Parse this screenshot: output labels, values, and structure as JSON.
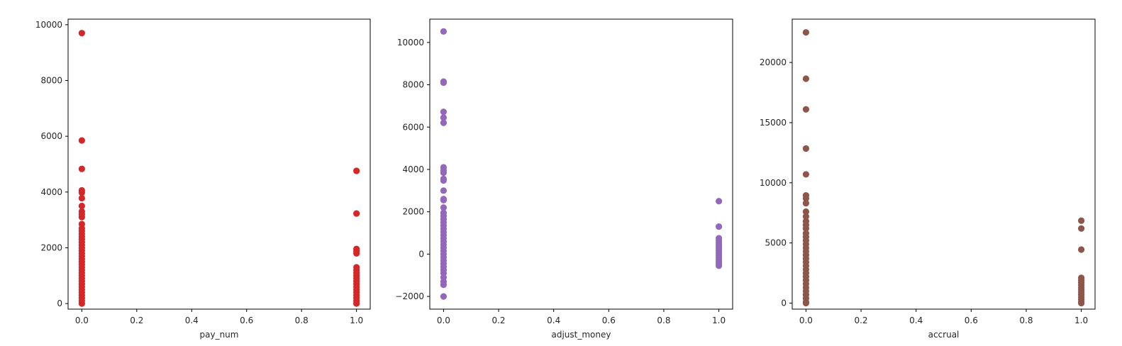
{
  "chart_data": [
    {
      "type": "scatter",
      "xlabel": "pay_num",
      "color": "#d62728",
      "xlim": [
        -0.05,
        1.05
      ],
      "ylim": [
        -200,
        10200
      ],
      "xticks": [
        0.0,
        0.2,
        0.4,
        0.6,
        0.8,
        1.0
      ],
      "xtick_labels": [
        "0.0",
        "0.2",
        "0.4",
        "0.6",
        "0.8",
        "1.0"
      ],
      "yticks": [
        0,
        2000,
        4000,
        6000,
        8000,
        10000
      ],
      "ytick_labels": [
        "0",
        "2000",
        "4000",
        "6000",
        "8000",
        "10000"
      ],
      "grid": false,
      "points": [
        {
          "x": 0,
          "y": 9700
        },
        {
          "x": 0,
          "y": 5850
        },
        {
          "x": 0,
          "y": 4830
        },
        {
          "x": 0,
          "y": 4060
        },
        {
          "x": 0,
          "y": 3980
        },
        {
          "x": 0,
          "y": 3780
        },
        {
          "x": 0,
          "y": 3500
        },
        {
          "x": 0,
          "y": 3300
        },
        {
          "x": 0,
          "y": 3200
        },
        {
          "x": 0,
          "y": 3100
        },
        {
          "x": 0,
          "y": 2850
        },
        {
          "x": 0,
          "y": 2700
        },
        {
          "x": 0,
          "y": 2600
        },
        {
          "x": 0,
          "y": 2500
        },
        {
          "x": 0,
          "y": 2400
        },
        {
          "x": 0,
          "y": 2300
        },
        {
          "x": 0,
          "y": 2200
        },
        {
          "x": 0,
          "y": 2100
        },
        {
          "x": 0,
          "y": 2000
        },
        {
          "x": 0,
          "y": 1900
        },
        {
          "x": 0,
          "y": 1800
        },
        {
          "x": 0,
          "y": 1700
        },
        {
          "x": 0,
          "y": 1600
        },
        {
          "x": 0,
          "y": 1500
        },
        {
          "x": 0,
          "y": 1400
        },
        {
          "x": 0,
          "y": 1300
        },
        {
          "x": 0,
          "y": 1200
        },
        {
          "x": 0,
          "y": 1100
        },
        {
          "x": 0,
          "y": 1000
        },
        {
          "x": 0,
          "y": 900
        },
        {
          "x": 0,
          "y": 800
        },
        {
          "x": 0,
          "y": 700
        },
        {
          "x": 0,
          "y": 600
        },
        {
          "x": 0,
          "y": 500
        },
        {
          "x": 0,
          "y": 400
        },
        {
          "x": 0,
          "y": 300
        },
        {
          "x": 0,
          "y": 200
        },
        {
          "x": 0,
          "y": 100
        },
        {
          "x": 0,
          "y": 0
        },
        {
          "x": 1,
          "y": 4760
        },
        {
          "x": 1,
          "y": 3230
        },
        {
          "x": 1,
          "y": 1960
        },
        {
          "x": 1,
          "y": 1880
        },
        {
          "x": 1,
          "y": 1800
        },
        {
          "x": 1,
          "y": 1300
        },
        {
          "x": 1,
          "y": 1200
        },
        {
          "x": 1,
          "y": 1100
        },
        {
          "x": 1,
          "y": 1000
        },
        {
          "x": 1,
          "y": 900
        },
        {
          "x": 1,
          "y": 800
        },
        {
          "x": 1,
          "y": 700
        },
        {
          "x": 1,
          "y": 600
        },
        {
          "x": 1,
          "y": 500
        },
        {
          "x": 1,
          "y": 400
        },
        {
          "x": 1,
          "y": 300
        },
        {
          "x": 1,
          "y": 200
        },
        {
          "x": 1,
          "y": 100
        },
        {
          "x": 1,
          "y": 0
        }
      ]
    },
    {
      "type": "scatter",
      "xlabel": "adjust_money",
      "color": "#9467bd",
      "xlim": [
        -0.05,
        1.05
      ],
      "ylim": [
        -2600,
        11100
      ],
      "xticks": [
        0.0,
        0.2,
        0.4,
        0.6,
        0.8,
        1.0
      ],
      "xtick_labels": [
        "0.0",
        "0.2",
        "0.4",
        "0.6",
        "0.8",
        "1.0"
      ],
      "yticks": [
        -2000,
        0,
        2000,
        4000,
        6000,
        8000,
        10000
      ],
      "ytick_labels": [
        "−2000",
        "0",
        "2000",
        "4000",
        "6000",
        "8000",
        "10000"
      ],
      "grid": false,
      "points": [
        {
          "x": 0,
          "y": 10520
        },
        {
          "x": 0,
          "y": 8150
        },
        {
          "x": 0,
          "y": 8100
        },
        {
          "x": 0,
          "y": 6720
        },
        {
          "x": 0,
          "y": 6450
        },
        {
          "x": 0,
          "y": 6200
        },
        {
          "x": 0,
          "y": 4100
        },
        {
          "x": 0,
          "y": 3950
        },
        {
          "x": 0,
          "y": 3850
        },
        {
          "x": 0,
          "y": 3550
        },
        {
          "x": 0,
          "y": 3480
        },
        {
          "x": 0,
          "y": 3000
        },
        {
          "x": 0,
          "y": 2600
        },
        {
          "x": 0,
          "y": 2550
        },
        {
          "x": 0,
          "y": 2200
        },
        {
          "x": 0,
          "y": 1950
        },
        {
          "x": 0,
          "y": 1800
        },
        {
          "x": 0,
          "y": 1650
        },
        {
          "x": 0,
          "y": 1500
        },
        {
          "x": 0,
          "y": 1350
        },
        {
          "x": 0,
          "y": 1200
        },
        {
          "x": 0,
          "y": 1050
        },
        {
          "x": 0,
          "y": 900
        },
        {
          "x": 0,
          "y": 750
        },
        {
          "x": 0,
          "y": 600
        },
        {
          "x": 0,
          "y": 450
        },
        {
          "x": 0,
          "y": 300
        },
        {
          "x": 0,
          "y": 150
        },
        {
          "x": 0,
          "y": 0
        },
        {
          "x": 0,
          "y": -150
        },
        {
          "x": 0,
          "y": -300
        },
        {
          "x": 0,
          "y": -450
        },
        {
          "x": 0,
          "y": -600
        },
        {
          "x": 0,
          "y": -750
        },
        {
          "x": 0,
          "y": -900
        },
        {
          "x": 0,
          "y": -1100
        },
        {
          "x": 0,
          "y": -1300
        },
        {
          "x": 0,
          "y": -1450
        },
        {
          "x": 0,
          "y": -2000
        },
        {
          "x": 1,
          "y": 2500
        },
        {
          "x": 1,
          "y": 1300
        },
        {
          "x": 1,
          "y": 750
        },
        {
          "x": 1,
          "y": 650
        },
        {
          "x": 1,
          "y": 550
        },
        {
          "x": 1,
          "y": 450
        },
        {
          "x": 1,
          "y": 350
        },
        {
          "x": 1,
          "y": 250
        },
        {
          "x": 1,
          "y": 150
        },
        {
          "x": 1,
          "y": 50
        },
        {
          "x": 1,
          "y": -50
        },
        {
          "x": 1,
          "y": -150
        },
        {
          "x": 1,
          "y": -250
        },
        {
          "x": 1,
          "y": -350
        },
        {
          "x": 1,
          "y": -450
        },
        {
          "x": 1,
          "y": -550
        }
      ]
    },
    {
      "type": "scatter",
      "xlabel": "accrual",
      "color": "#8c564b",
      "xlim": [
        -0.05,
        1.05
      ],
      "ylim": [
        -500,
        23600
      ],
      "xticks": [
        0.0,
        0.2,
        0.4,
        0.6,
        0.8,
        1.0
      ],
      "xtick_labels": [
        "0.0",
        "0.2",
        "0.4",
        "0.6",
        "0.8",
        "1.0"
      ],
      "yticks": [
        0,
        5000,
        10000,
        15000,
        20000
      ],
      "ytick_labels": [
        "0",
        "5000",
        "10000",
        "15000",
        "20000"
      ],
      "grid": false,
      "points": [
        {
          "x": 0,
          "y": 22500
        },
        {
          "x": 0,
          "y": 18650
        },
        {
          "x": 0,
          "y": 16100
        },
        {
          "x": 0,
          "y": 12850
        },
        {
          "x": 0,
          "y": 10700
        },
        {
          "x": 0,
          "y": 8950
        },
        {
          "x": 0,
          "y": 8700
        },
        {
          "x": 0,
          "y": 8300
        },
        {
          "x": 0,
          "y": 7600
        },
        {
          "x": 0,
          "y": 7200
        },
        {
          "x": 0,
          "y": 6800
        },
        {
          "x": 0,
          "y": 6500
        },
        {
          "x": 0,
          "y": 6200
        },
        {
          "x": 0,
          "y": 5800
        },
        {
          "x": 0,
          "y": 5500
        },
        {
          "x": 0,
          "y": 5200
        },
        {
          "x": 0,
          "y": 4900
        },
        {
          "x": 0,
          "y": 4600
        },
        {
          "x": 0,
          "y": 4300
        },
        {
          "x": 0,
          "y": 4000
        },
        {
          "x": 0,
          "y": 3700
        },
        {
          "x": 0,
          "y": 3400
        },
        {
          "x": 0,
          "y": 3100
        },
        {
          "x": 0,
          "y": 2800
        },
        {
          "x": 0,
          "y": 2500
        },
        {
          "x": 0,
          "y": 2200
        },
        {
          "x": 0,
          "y": 1900
        },
        {
          "x": 0,
          "y": 1600
        },
        {
          "x": 0,
          "y": 1300
        },
        {
          "x": 0,
          "y": 1000
        },
        {
          "x": 0,
          "y": 700
        },
        {
          "x": 0,
          "y": 400
        },
        {
          "x": 0,
          "y": 100
        },
        {
          "x": 0,
          "y": 0
        },
        {
          "x": 1,
          "y": 6850
        },
        {
          "x": 1,
          "y": 6200
        },
        {
          "x": 1,
          "y": 4450
        },
        {
          "x": 1,
          "y": 2100
        },
        {
          "x": 1,
          "y": 1900
        },
        {
          "x": 1,
          "y": 1700
        },
        {
          "x": 1,
          "y": 1500
        },
        {
          "x": 1,
          "y": 1300
        },
        {
          "x": 1,
          "y": 1100
        },
        {
          "x": 1,
          "y": 900
        },
        {
          "x": 1,
          "y": 700
        },
        {
          "x": 1,
          "y": 500
        },
        {
          "x": 1,
          "y": 300
        },
        {
          "x": 1,
          "y": 100
        },
        {
          "x": 1,
          "y": 0
        }
      ]
    }
  ]
}
